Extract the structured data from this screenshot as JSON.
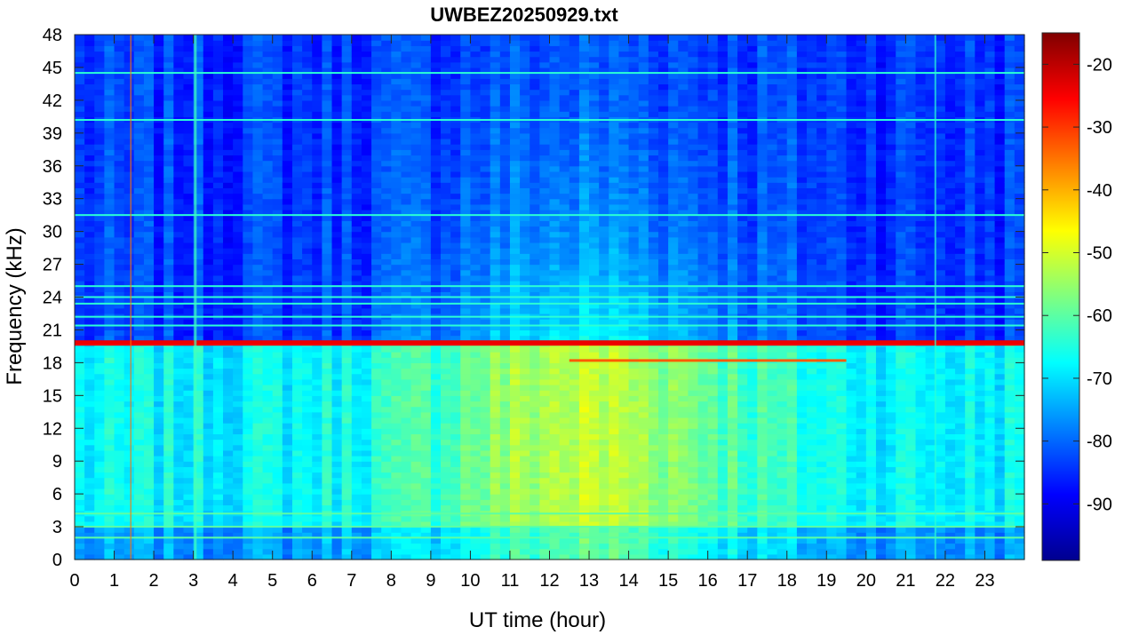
{
  "chart_data": {
    "type": "heatmap",
    "title": "UWBEZ20250929.txt",
    "xlabel": "UT time (hour)",
    "ylabel": "Frequency (kHz)",
    "xlim": [
      0,
      24
    ],
    "ylim": [
      0,
      48
    ],
    "x_ticks": [
      "0",
      "1",
      "2",
      "3",
      "4",
      "5",
      "6",
      "7",
      "8",
      "9",
      "10",
      "11",
      "12",
      "13",
      "14",
      "15",
      "16",
      "17",
      "18",
      "19",
      "20",
      "21",
      "22",
      "23"
    ],
    "y_ticks": [
      "0",
      "3",
      "6",
      "9",
      "12",
      "15",
      "18",
      "21",
      "24",
      "27",
      "30",
      "33",
      "36",
      "39",
      "42",
      "45",
      "48"
    ],
    "colorbar": {
      "colormap": "jet",
      "range": [
        -99,
        -15
      ],
      "ticks": [
        "-90",
        "-80",
        "-70",
        "-60",
        "-50",
        "-40",
        "-30",
        "-20"
      ]
    },
    "features": {
      "strong_lines_khz": [
        19.8,
        18.2
      ],
      "narrowband_lines_khz": [
        21.4,
        22.2,
        23.4,
        24.0,
        25.0,
        31.5,
        40.2,
        44.5,
        4.2,
        3.0,
        2.0
      ],
      "daytime_enhancement_hours": [
        8,
        19
      ]
    }
  }
}
